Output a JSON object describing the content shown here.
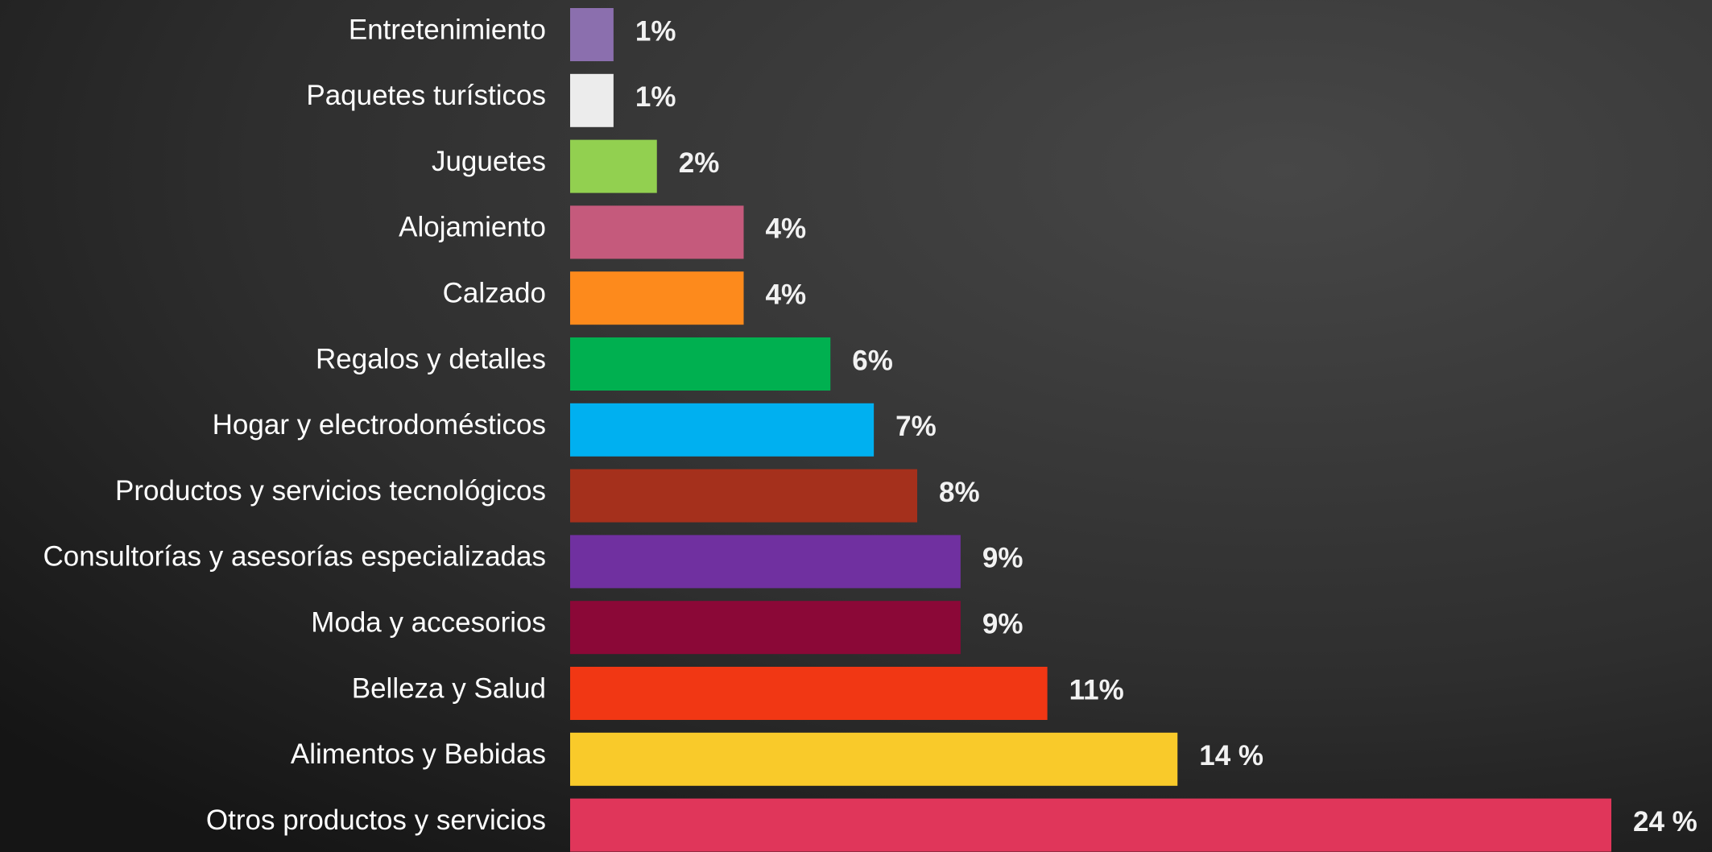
{
  "chart_data": {
    "type": "bar",
    "orientation": "horizontal",
    "categories": [
      "Entretenimiento",
      "Paquetes turísticos",
      "Juguetes",
      "Alojamiento",
      "Calzado",
      "Regalos y detalles",
      "Hogar y electrodomésticos",
      "Productos y servicios tecnológicos",
      "Consultorías y asesorías especializadas",
      "Moda y accesorios",
      "Belleza y Salud",
      "Alimentos y Bebidas",
      "Otros productos y servicios"
    ],
    "values": [
      1,
      1,
      2,
      4,
      4,
      6,
      7,
      8,
      9,
      9,
      11,
      14,
      24
    ],
    "value_labels": [
      "1%",
      "1%",
      "2%",
      "4%",
      "4%",
      "6%",
      "7%",
      "8%",
      "9%",
      "9%",
      "11%",
      "14 %",
      "24 %"
    ],
    "colors": [
      "#8b6fae",
      "#ececec",
      "#92d050",
      "#c55a7c",
      "#fd8a1c",
      "#00b050",
      "#00b0f0",
      "#a5301c",
      "#7030a0",
      "#8b0837",
      "#f13714",
      "#f9ca2a",
      "#e0365a"
    ]
  }
}
